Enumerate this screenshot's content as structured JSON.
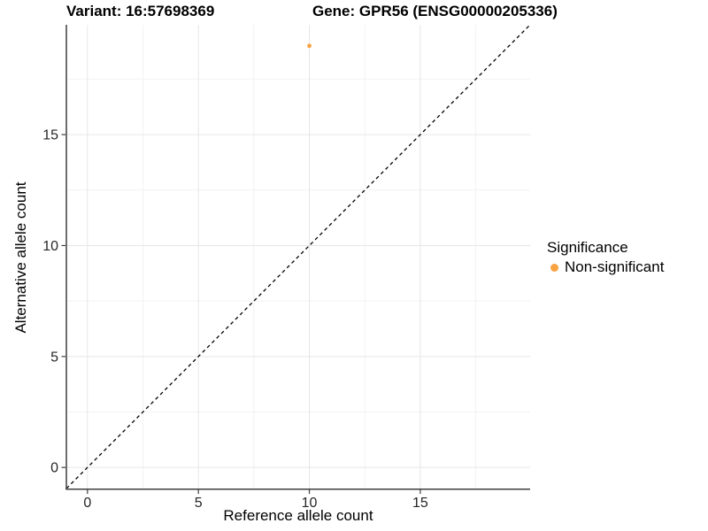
{
  "titles": {
    "variant": "Variant: 16:57698369",
    "gene": "Gene: GPR56 (ENSG00000205336)"
  },
  "chart_data": {
    "type": "scatter",
    "xlabel": "Reference allele count",
    "ylabel": "Alternative allele count",
    "xlim": [
      -0.95,
      19.95
    ],
    "ylim": [
      -0.95,
      19.95
    ],
    "x_ticks": [
      0,
      5,
      10,
      15
    ],
    "y_ticks": [
      0,
      5,
      10,
      15
    ],
    "x_minor_ticks": [
      2.5,
      7.5,
      12.5,
      17.5
    ],
    "y_minor_ticks": [
      2.5,
      7.5,
      12.5,
      17.5
    ],
    "grid": {
      "major": true,
      "minor": true
    },
    "points": [
      {
        "x": 10,
        "y": 19,
        "series": "Non-significant",
        "color": "#F9A242",
        "radius": 2.4
      }
    ],
    "reference_line": {
      "type": "identity",
      "style": "dashed",
      "color": "#000000",
      "from": [
        -0.95,
        -0.95
      ],
      "to": [
        19.95,
        19.95
      ]
    },
    "legend": {
      "title": "Significance",
      "position": "right",
      "entries": [
        {
          "label": "Non-significant",
          "color": "#F9A242"
        }
      ]
    },
    "colors": {
      "major_grid": "#E6E6E6",
      "minor_grid": "#F2F2F2",
      "axis_line": "#3F3F3F",
      "tick_mark": "#3F3F3F",
      "tick_label": "#262626"
    }
  }
}
